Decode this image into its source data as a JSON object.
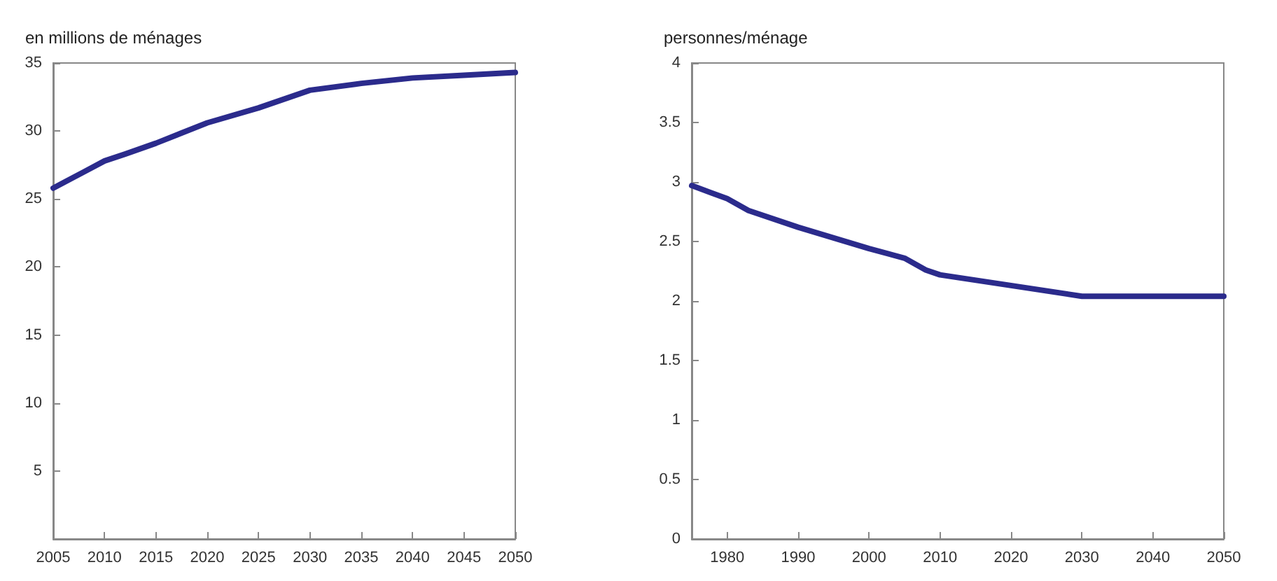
{
  "chart_data": [
    {
      "type": "line",
      "ylabel": "en millions de ménages",
      "x": [
        2005,
        2008,
        2010,
        2012,
        2015,
        2020,
        2025,
        2030,
        2035,
        2040,
        2045,
        2050
      ],
      "series": [
        {
          "color": "#2b2b8c",
          "values": [
            25.8,
            27.0,
            27.8,
            28.3,
            29.1,
            30.6,
            31.7,
            33.0,
            33.5,
            33.9,
            34.1,
            34.3
          ]
        }
      ],
      "xlim": [
        2005,
        2050
      ],
      "xticks": [
        2005,
        2010,
        2015,
        2020,
        2025,
        2030,
        2035,
        2040,
        2045,
        2050
      ],
      "ylim": [
        0,
        35
      ],
      "yticks": [
        5,
        10,
        15,
        20,
        25,
        30,
        35
      ],
      "grid": false,
      "marker": "none",
      "line_style": "solid"
    },
    {
      "type": "line",
      "ylabel": "personnes/ménage",
      "x": [
        1975,
        1980,
        1983,
        1990,
        2000,
        2005,
        2008,
        2010,
        2020,
        2030,
        2040,
        2050
      ],
      "series": [
        {
          "color": "#2b2b8c",
          "values": [
            2.97,
            2.86,
            2.76,
            2.62,
            2.44,
            2.36,
            2.26,
            2.22,
            2.13,
            2.04,
            2.04,
            2.04
          ]
        }
      ],
      "xlim": [
        1975,
        2050
      ],
      "xticks": [
        1980,
        1990,
        2000,
        2010,
        2020,
        2030,
        2040,
        2050
      ],
      "ylim": [
        0,
        4
      ],
      "yticks": [
        0,
        0.5,
        1,
        1.5,
        2,
        2.5,
        3,
        3.5,
        4
      ],
      "grid": false,
      "marker": "none",
      "line_style": "solid"
    }
  ]
}
